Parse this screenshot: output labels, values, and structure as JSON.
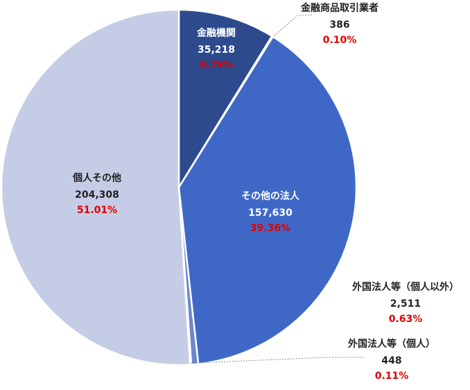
{
  "chart_data": {
    "type": "pie",
    "categories": [
      "金融機関",
      "金融商品取引業者",
      "その他の法人",
      "外国法人等（個人以外）",
      "外国法人等（個人）",
      "個人その他"
    ],
    "values": [
      35218,
      386,
      157630,
      2511,
      448,
      204308
    ],
    "value_labels": [
      "35,218",
      "386",
      "157,630",
      "2,511",
      "448",
      "204,308"
    ],
    "percentages": [
      8.79,
      0.1,
      39.36,
      0.63,
      0.11,
      51.01
    ],
    "percentage_labels": [
      "8.79%",
      "0.10%",
      "39.36%",
      "0.63%",
      "0.11%",
      "51.01%"
    ],
    "colors": [
      "#2c4a8c",
      "#3a5fb0",
      "#3f68c6",
      "#6d86cc",
      "#8a9bd0",
      "#c5cce6"
    ]
  }
}
